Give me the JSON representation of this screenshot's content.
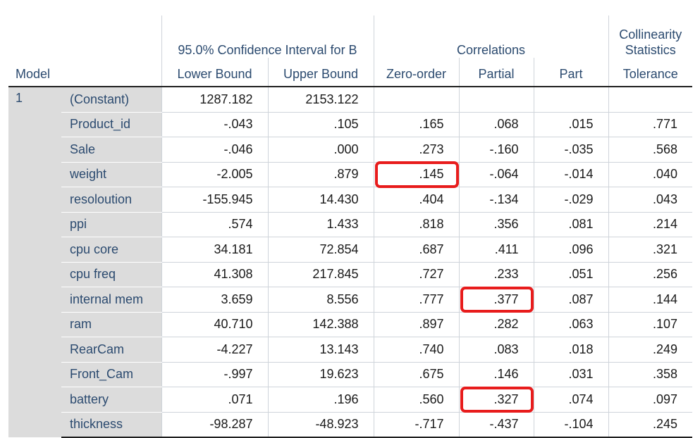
{
  "table": {
    "group_headers": {
      "confidence_interval": "95.0% Confidence Interval for B",
      "correlations": "Correlations",
      "collinearity": "Collinearity Statistics"
    },
    "column_headers": {
      "model": "Model",
      "lower_bound": "Lower Bound",
      "upper_bound": "Upper Bound",
      "zero_order": "Zero-order",
      "partial": "Partial",
      "part": "Part",
      "tolerance": "Tolerance"
    },
    "model_number": "1",
    "rows": [
      {
        "label": "(Constant)",
        "lower": "1287.182",
        "upper": "2153.122",
        "zero": "",
        "partial": "",
        "part": "",
        "tolerance": ""
      },
      {
        "label": "Product_id",
        "lower": "-.043",
        "upper": ".105",
        "zero": ".165",
        "partial": ".068",
        "part": ".015",
        "tolerance": ".771"
      },
      {
        "label": "Sale",
        "lower": "-.046",
        "upper": ".000",
        "zero": ".273",
        "partial": "-.160",
        "part": "-.035",
        "tolerance": ".568"
      },
      {
        "label": "weight",
        "lower": "-2.005",
        "upper": ".879",
        "zero": ".145",
        "partial": "-.064",
        "part": "-.014",
        "tolerance": ".040"
      },
      {
        "label": "resoloution",
        "lower": "-155.945",
        "upper": "14.430",
        "zero": ".404",
        "partial": "-.134",
        "part": "-.029",
        "tolerance": ".043"
      },
      {
        "label": "ppi",
        "lower": ".574",
        "upper": "1.433",
        "zero": ".818",
        "partial": ".356",
        "part": ".081",
        "tolerance": ".214"
      },
      {
        "label": "cpu core",
        "lower": "34.181",
        "upper": "72.854",
        "zero": ".687",
        "partial": ".411",
        "part": ".096",
        "tolerance": ".321"
      },
      {
        "label": "cpu freq",
        "lower": "41.308",
        "upper": "217.845",
        "zero": ".727",
        "partial": ".233",
        "part": ".051",
        "tolerance": ".256"
      },
      {
        "label": "internal mem",
        "lower": "3.659",
        "upper": "8.556",
        "zero": ".777",
        "partial": ".377",
        "part": ".087",
        "tolerance": ".144"
      },
      {
        "label": "ram",
        "lower": "40.710",
        "upper": "142.388",
        "zero": ".897",
        "partial": ".282",
        "part": ".063",
        "tolerance": ".107"
      },
      {
        "label": "RearCam",
        "lower": "-4.227",
        "upper": "13.143",
        "zero": ".740",
        "partial": ".083",
        "part": ".018",
        "tolerance": ".249"
      },
      {
        "label": "Front_Cam",
        "lower": "-.997",
        "upper": "19.623",
        "zero": ".675",
        "partial": ".146",
        "part": ".031",
        "tolerance": ".358"
      },
      {
        "label": "battery",
        "lower": ".071",
        "upper": ".196",
        "zero": ".560",
        "partial": ".327",
        "part": ".074",
        "tolerance": ".097"
      },
      {
        "label": "thickness",
        "lower": "-98.287",
        "upper": "-48.923",
        "zero": "-.717",
        "partial": "-.437",
        "part": "-.104",
        "tolerance": ".245"
      }
    ],
    "highlighted_cells": [
      {
        "row": 3,
        "column": "zero"
      },
      {
        "row": 8,
        "column": "partial"
      },
      {
        "row": 12,
        "column": "partial"
      }
    ],
    "highlight_color": "#e81c1c",
    "header_text_color": "#2b4a6f",
    "label_background": "#dcdcdc"
  }
}
